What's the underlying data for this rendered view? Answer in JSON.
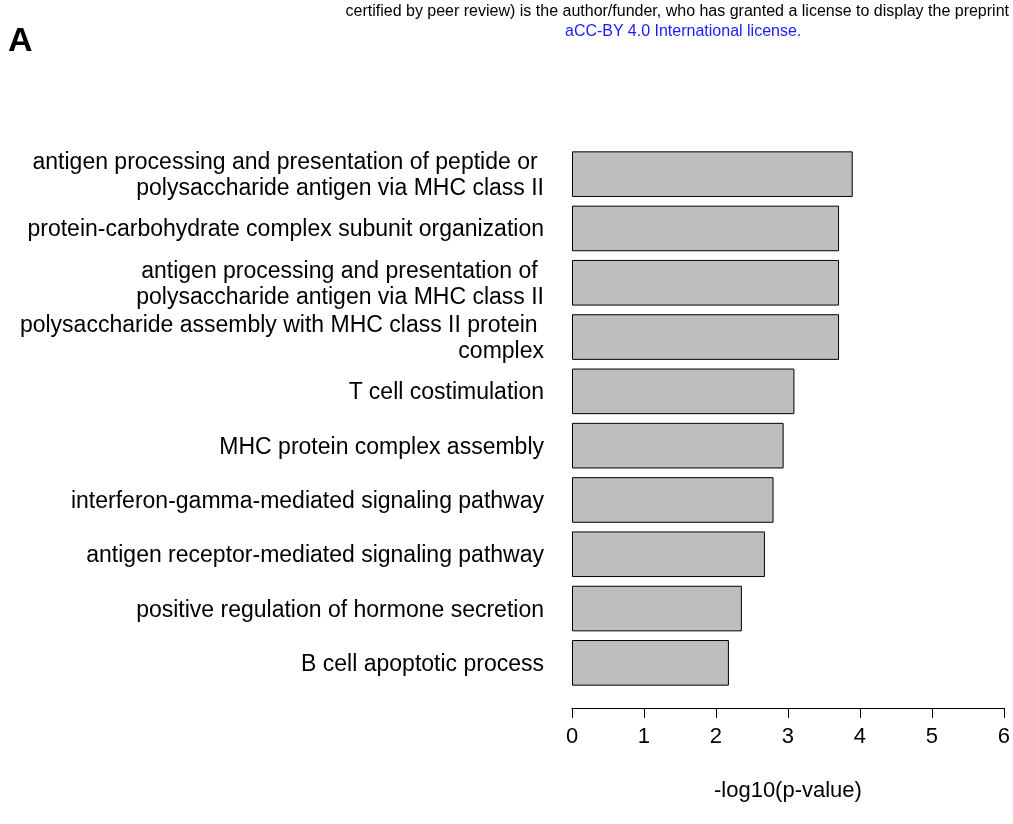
{
  "chart_data": {
    "type": "bar",
    "orientation": "horizontal",
    "xlabel": "-log10(p-value)",
    "categories": [
      "antigen processing and presentation of peptide or polysaccharide antigen via MHC class II",
      "protein-carbohydrate complex subunit organization",
      "antigen processing and presentation of polysaccharide antigen via MHC class II",
      "polysaccharide assembly with MHC class II protein complex",
      "T cell costimulation",
      "MHC protein complex assembly",
      "interferon-gamma-mediated signaling pathway",
      "antigen receptor-mediated signaling pathway",
      "positive regulation of hormone secretion",
      "B cell apoptotic process"
    ],
    "values": [
      3.9,
      3.71,
      3.71,
      3.71,
      3.09,
      2.94,
      2.8,
      2.68,
      2.36,
      2.18
    ],
    "color": "#bebebe",
    "xlim": [
      0,
      6
    ],
    "xticks": [
      0,
      1,
      2,
      3,
      4,
      5,
      6
    ],
    "grid": false,
    "annotations": [
      "A",
      "certified by peer review) is the author/funder, who has granted a license to display the preprint",
      "aCC-BY 4.0 International license."
    ]
  }
}
